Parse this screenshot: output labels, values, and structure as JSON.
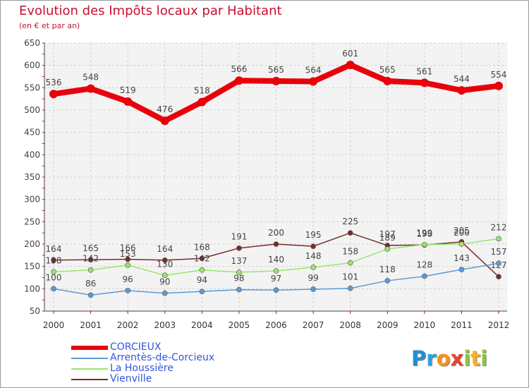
{
  "header": {
    "title": "Evolution des Impôts locaux par Habitant",
    "subtitle": "(en € et par an)"
  },
  "logo": {
    "letters": [
      "P",
      "r",
      "o",
      "x",
      "i",
      "t",
      "i"
    ],
    "colors": [
      "#1f8fd8",
      "#2aa3e0",
      "#f7941d",
      "#e8442a",
      "#8cc63f",
      "#f7b21d",
      "#8cc63f"
    ]
  },
  "legend": {
    "items": [
      {
        "label": "CORCIEUX",
        "color": "#e8000b",
        "thickness": 6
      },
      {
        "label": "Arrentès-de-Corcieux",
        "color": "#5b9bd5",
        "thickness": 2
      },
      {
        "label": "La Houssière",
        "color": "#99e66a",
        "thickness": 2
      },
      {
        "label": "Vienville",
        "color": "#7a2a2a",
        "thickness": 2
      }
    ]
  },
  "chart_data": {
    "type": "line",
    "title": "Evolution des Impôts locaux par Habitant",
    "subtitle": "(en € et par an)",
    "xlabel": "",
    "ylabel": "",
    "x": [
      "2000",
      "2001",
      "2002",
      "2003",
      "2004",
      "2005",
      "2006",
      "2007",
      "2008",
      "2009",
      "2010",
      "2011",
      "2012"
    ],
    "ylim": [
      50,
      650
    ],
    "yticks": [
      50,
      100,
      150,
      200,
      250,
      300,
      350,
      400,
      450,
      500,
      550,
      600,
      650
    ],
    "grid": true,
    "legend_position": "bottom-left",
    "series": [
      {
        "name": "CORCIEUX",
        "color": "#e8000b",
        "values": [
          536,
          548,
          519,
          476,
          518,
          566,
          565,
          564,
          601,
          565,
          561,
          544,
          554
        ]
      },
      {
        "name": "Arrentès-de-Corcieux",
        "color": "#5b9bd5",
        "values": [
          100,
          86,
          96,
          90,
          94,
          98,
          97,
          99,
          101,
          118,
          128,
          143,
          157
        ]
      },
      {
        "name": "La Houssière",
        "color": "#99e66a",
        "values": [
          138,
          142,
          153,
          130,
          142,
          137,
          140,
          148,
          158,
          189,
          199,
          200,
          212
        ]
      },
      {
        "name": "Vienville",
        "color": "#7a2a2a",
        "values": [
          164,
          165,
          166,
          164,
          168,
          191,
          200,
          195,
          225,
          197,
          198,
          205,
          127
        ]
      }
    ]
  }
}
